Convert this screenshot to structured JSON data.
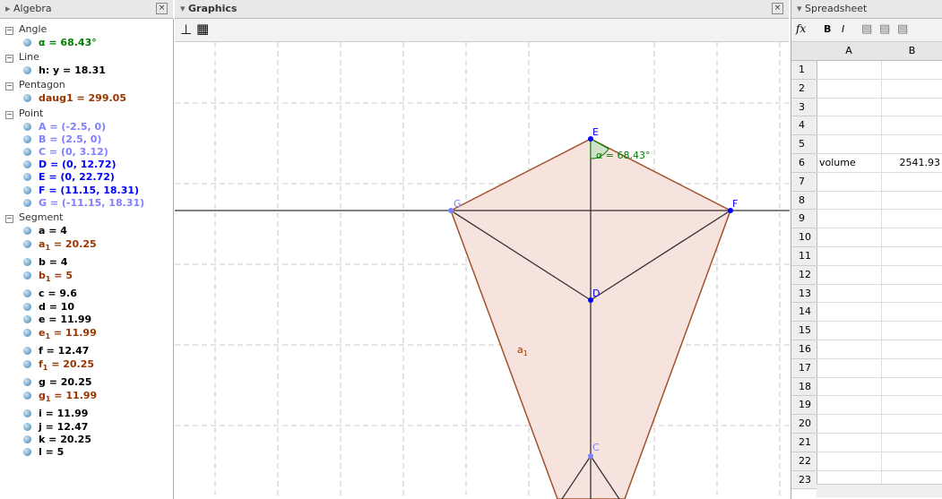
{
  "algebra": {
    "title": "Algebra",
    "groups": [
      {
        "name": "Angle",
        "items": [
          {
            "text": "α = 68.43°",
            "color": "#007f00"
          }
        ]
      },
      {
        "name": "Line",
        "items": [
          {
            "text": "h: y = 18.31",
            "color": "#000000"
          }
        ]
      },
      {
        "name": "Pentagon",
        "items": [
          {
            "text": "daug1 = 299.05",
            "color": "#993300"
          }
        ]
      },
      {
        "name": "Point",
        "items": [
          {
            "text": "A = (-2.5, 0)",
            "color": "#7f7fff"
          },
          {
            "text": "B = (2.5, 0)",
            "color": "#7f7fff"
          },
          {
            "text": "C = (0, 3.12)",
            "color": "#7f7fff"
          },
          {
            "text": "D = (0, 12.72)",
            "color": "#0000ff"
          },
          {
            "text": "E = (0, 22.72)",
            "color": "#0000ff"
          },
          {
            "text": "F = (11.15, 18.31)",
            "color": "#0000ff"
          },
          {
            "text": "G = (-11.15, 18.31)",
            "color": "#7f7fff"
          }
        ]
      },
      {
        "name": "Segment",
        "items": [
          {
            "text": "a = 4",
            "color": "#000000"
          },
          {
            "name": "a",
            "sub": "1",
            "rest": " = 20.25",
            "color": "#993300"
          },
          {
            "text": "b = 4",
            "color": "#000000"
          },
          {
            "name": "b",
            "sub": "1",
            "rest": " = 5",
            "color": "#993300"
          },
          {
            "text": "c = 9.6",
            "color": "#000000"
          },
          {
            "text": "d = 10",
            "color": "#000000"
          },
          {
            "text": "e = 11.99",
            "color": "#000000"
          },
          {
            "name": "e",
            "sub": "1",
            "rest": " = 11.99",
            "color": "#993300"
          },
          {
            "text": "f = 12.47",
            "color": "#000000"
          },
          {
            "name": "f",
            "sub": "1",
            "rest": " = 20.25",
            "color": "#993300"
          },
          {
            "text": "g = 20.25",
            "color": "#000000"
          },
          {
            "name": "g",
            "sub": "1",
            "rest": " = 11.99",
            "color": "#993300"
          },
          {
            "text": "i = 11.99",
            "color": "#000000"
          },
          {
            "text": "j = 12.47",
            "color": "#000000"
          },
          {
            "text": "k = 20.25",
            "color": "#000000"
          },
          {
            "text": "l = 5",
            "color": "#000000"
          }
        ]
      }
    ]
  },
  "graphics": {
    "title": "Graphics",
    "labels": [
      {
        "text": "E",
        "color": "#0000ff"
      },
      {
        "text": "α = 68.43°",
        "color": "#007f00"
      },
      {
        "text": "G",
        "color": "#7f7fff"
      },
      {
        "text": "F",
        "color": "#0000ff"
      },
      {
        "text": "D",
        "color": "#0000ff"
      },
      {
        "name": "a",
        "sub": "1",
        "color": "#993300"
      },
      {
        "text": "C",
        "color": "#7f7fff"
      }
    ]
  },
  "spreadsheet": {
    "title": "Spreadsheet",
    "fx": "fx",
    "toolbar": [
      "B",
      "I"
    ],
    "columns": [
      "A",
      "B"
    ],
    "rows": [
      {
        "label": 1
      },
      {
        "label": 2
      },
      {
        "label": 3
      },
      {
        "label": 4
      },
      {
        "label": 5
      },
      {
        "label": 6,
        "A": "volume",
        "B": "2541.93"
      },
      {
        "label": 7
      },
      {
        "label": 8
      },
      {
        "label": 9
      },
      {
        "label": 10
      },
      {
        "label": 11
      },
      {
        "label": 12
      },
      {
        "label": 13
      },
      {
        "label": 14
      },
      {
        "label": 15
      },
      {
        "label": 16
      },
      {
        "label": 17
      },
      {
        "label": 18
      },
      {
        "label": 19
      },
      {
        "label": 20
      },
      {
        "label": 21
      },
      {
        "label": 22
      },
      {
        "label": 23
      }
    ]
  }
}
